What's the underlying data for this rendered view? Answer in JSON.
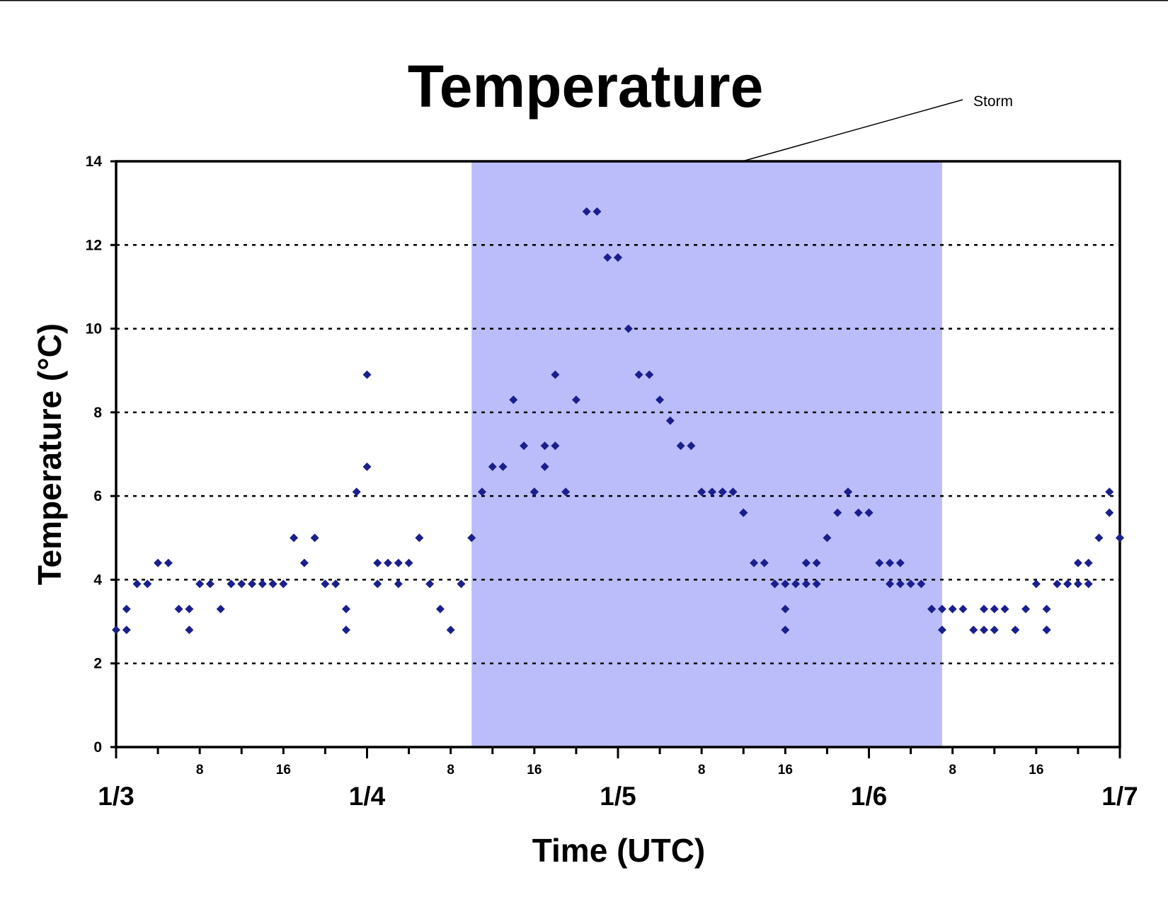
{
  "chart_data": {
    "type": "scatter",
    "title": "Temperature",
    "xlabel": "Time (UTC)",
    "ylabel": "Temperature (°C)",
    "ylim": [
      0,
      14
    ],
    "yticks": [
      0,
      2,
      4,
      6,
      8,
      10,
      12,
      14
    ],
    "grid": "dotted horizontal",
    "xlim": [
      "1/3 00",
      "1/7 00"
    ],
    "date_ticks": [
      "1/3",
      "1/4",
      "1/5",
      "1/6",
      "1/7"
    ],
    "hour_tick_labels": [
      "8",
      "16"
    ],
    "marker": "diamond",
    "colors": {
      "points": "#1a1f8c",
      "shade": "#bbbcfa",
      "grid": "#000000"
    },
    "annotation": {
      "text": "Storm",
      "start": "1/4 10",
      "end": "1/6 07"
    },
    "series": [
      {
        "points": [
          [
            "1/3 00",
            2.8
          ],
          [
            "1/3 01",
            3.3
          ],
          [
            "1/3 01",
            2.8
          ],
          [
            "1/3 02",
            3.9
          ],
          [
            "1/3 03",
            3.9
          ],
          [
            "1/3 04",
            4.4
          ],
          [
            "1/3 05",
            4.4
          ],
          [
            "1/3 06",
            3.3
          ],
          [
            "1/3 07",
            3.3
          ],
          [
            "1/3 07",
            2.8
          ],
          [
            "1/3 08",
            3.9
          ],
          [
            "1/3 09",
            3.9
          ],
          [
            "1/3 10",
            3.3
          ],
          [
            "1/3 11",
            3.9
          ],
          [
            "1/3 12",
            3.9
          ],
          [
            "1/3 13",
            3.9
          ],
          [
            "1/3 14",
            3.9
          ],
          [
            "1/3 15",
            3.9
          ],
          [
            "1/3 16",
            3.9
          ],
          [
            "1/3 17",
            5.0
          ],
          [
            "1/3 18",
            4.4
          ],
          [
            "1/3 19",
            5.0
          ],
          [
            "1/3 20",
            3.9
          ],
          [
            "1/3 21",
            3.9
          ],
          [
            "1/3 22",
            3.3
          ],
          [
            "1/3 22",
            2.8
          ],
          [
            "1/3 23",
            6.1
          ],
          [
            "1/4 00",
            6.7
          ],
          [
            "1/4 00",
            8.9
          ],
          [
            "1/4 01",
            4.4
          ],
          [
            "1/4 01",
            3.9
          ],
          [
            "1/4 02",
            4.4
          ],
          [
            "1/4 03",
            3.9
          ],
          [
            "1/4 03",
            4.4
          ],
          [
            "1/4 04",
            4.4
          ],
          [
            "1/4 05",
            5.0
          ],
          [
            "1/4 06",
            3.9
          ],
          [
            "1/4 07",
            3.3
          ],
          [
            "1/4 08",
            2.8
          ],
          [
            "1/4 09",
            3.9
          ],
          [
            "1/4 10",
            5.0
          ],
          [
            "1/4 11",
            6.1
          ],
          [
            "1/4 12",
            6.7
          ],
          [
            "1/4 13",
            6.7
          ],
          [
            "1/4 14",
            8.3
          ],
          [
            "1/4 15",
            7.2
          ],
          [
            "1/4 16",
            6.1
          ],
          [
            "1/4 16",
            6.1
          ],
          [
            "1/4 17",
            6.7
          ],
          [
            "1/4 17",
            7.2
          ],
          [
            "1/4 18",
            8.9
          ],
          [
            "1/4 18",
            7.2
          ],
          [
            "1/4 19",
            6.1
          ],
          [
            "1/4 20",
            8.3
          ],
          [
            "1/4 21",
            12.8
          ],
          [
            "1/4 22",
            12.8
          ],
          [
            "1/4 23",
            11.7
          ],
          [
            "1/5 00",
            11.7
          ],
          [
            "1/5 00",
            11.7
          ],
          [
            "1/5 01",
            10.0
          ],
          [
            "1/5 02",
            8.9
          ],
          [
            "1/5 03",
            8.9
          ],
          [
            "1/5 04",
            8.3
          ],
          [
            "1/5 05",
            7.8
          ],
          [
            "1/5 06",
            7.2
          ],
          [
            "1/5 07",
            7.2
          ],
          [
            "1/5 08",
            6.1
          ],
          [
            "1/5 09",
            6.1
          ],
          [
            "1/5 10",
            6.1
          ],
          [
            "1/5 10",
            6.1
          ],
          [
            "1/5 11",
            6.1
          ],
          [
            "1/5 12",
            5.6
          ],
          [
            "1/5 12",
            5.6
          ],
          [
            "1/5 13",
            4.4
          ],
          [
            "1/5 14",
            4.4
          ],
          [
            "1/5 15",
            3.9
          ],
          [
            "1/5 15",
            3.9
          ],
          [
            "1/5 16",
            3.9
          ],
          [
            "1/5 16",
            3.3
          ],
          [
            "1/5 16",
            2.8
          ],
          [
            "1/5 17",
            3.9
          ],
          [
            "1/5 18",
            4.4
          ],
          [
            "1/5 18",
            4.4
          ],
          [
            "1/5 18",
            3.9
          ],
          [
            "1/5 19",
            4.4
          ],
          [
            "1/5 19",
            3.9
          ],
          [
            "1/5 20",
            5.0
          ],
          [
            "1/5 21",
            5.6
          ],
          [
            "1/5 22",
            6.1
          ],
          [
            "1/5 22",
            6.1
          ],
          [
            "1/5 23",
            5.6
          ],
          [
            "1/6 00",
            5.6
          ],
          [
            "1/6 00",
            5.6
          ],
          [
            "1/6 01",
            4.4
          ],
          [
            "1/6 02",
            4.4
          ],
          [
            "1/6 02",
            3.9
          ],
          [
            "1/6 03",
            4.4
          ],
          [
            "1/6 03",
            3.9
          ],
          [
            "1/6 04",
            3.9
          ],
          [
            "1/6 05",
            3.9
          ],
          [
            "1/6 06",
            3.3
          ],
          [
            "1/6 06",
            3.3
          ],
          [
            "1/6 07",
            2.8
          ],
          [
            "1/6 07",
            3.3
          ],
          [
            "1/6 08",
            3.3
          ],
          [
            "1/6 09",
            3.3
          ],
          [
            "1/6 10",
            2.8
          ],
          [
            "1/6 11",
            3.3
          ],
          [
            "1/6 11",
            2.8
          ],
          [
            "1/6 12",
            3.3
          ],
          [
            "1/6 12",
            2.8
          ],
          [
            "1/6 13",
            3.3
          ],
          [
            "1/6 14",
            2.8
          ],
          [
            "1/6 15",
            3.3
          ],
          [
            "1/6 16",
            3.9
          ],
          [
            "1/6 17",
            2.8
          ],
          [
            "1/6 17",
            2.8
          ],
          [
            "1/6 17",
            3.3
          ],
          [
            "1/6 17",
            2.8
          ],
          [
            "1/6 18",
            3.9
          ],
          [
            "1/6 19",
            3.9
          ],
          [
            "1/6 19",
            3.9
          ],
          [
            "1/6 20",
            4.4
          ],
          [
            "1/6 20",
            3.9
          ],
          [
            "1/6 21",
            4.4
          ],
          [
            "1/6 21",
            3.9
          ],
          [
            "1/6 22",
            5.0
          ],
          [
            "1/6 23",
            6.1
          ],
          [
            "1/6 23",
            5.6
          ],
          [
            "1/7 00",
            5.0
          ],
          [
            "1/7 00",
            5.0
          ]
        ]
      }
    ]
  }
}
